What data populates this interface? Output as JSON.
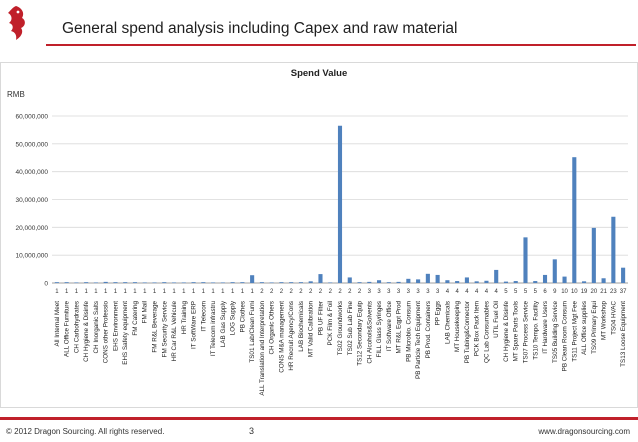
{
  "slide": {
    "title": "General spend analysis including Capex and raw material",
    "footer_left": "© 2012 Dragon Sourcing. All rights reserved.",
    "page_number": "3",
    "footer_right": "www.dragonsourcing.com"
  },
  "colors": {
    "accent": "#c0202a",
    "bar": "#4f81bd",
    "grid": "#d9d9d9"
  },
  "logo_icon": "dragon-logo-icon",
  "chart_data": {
    "type": "bar",
    "title": "Spend Value",
    "ylabel": "RMB",
    "ylim": [
      0,
      60000000
    ],
    "yticks": [
      "0",
      "10,000,000",
      "20,000,000",
      "30,000,000",
      "40,000,000",
      "50,000,000",
      "60,000,000"
    ],
    "grid": true,
    "categories": [
      "All Internal Meet",
      "ALL Office Furniture",
      "CH Carbohydrates",
      "CH Hygiene & Disinfe",
      "CH Inorganic Salts",
      "CONS other Professio",
      "EHS Environment",
      "EHS Safety equipment",
      "FM Catering",
      "FM Mail",
      "FM R&L Beverage",
      "FM Security Service",
      "HR Car R&L Vehicule",
      "HR Training",
      "IT SoftWare ERP",
      "IT Telecom",
      "IT Telecom infrastru",
      "LAB Gas Supply",
      "LOG Supply",
      "PB Clothes",
      "TS01 Lab/Clean Furni",
      "ALL Translation and Interpretation",
      "CH Organic Others",
      "CONS M&A management",
      "HR Recruit Agency/Cons",
      "LAB Biochemicals",
      "MT Valid Calibration",
      "PB UF Filter",
      "PCK Film & Foil",
      "TS02 Groundworks",
      "TS02 Sub Lab Fine",
      "TS12 Secondary Equip",
      "CH Alcohols&Solvents",
      "FILL Glass Syringes",
      "IT Software Office",
      "MT R&L Eqpt Prod",
      "PB Microbio. Consum",
      "PB Particle Tech Equipment",
      "PB Prod. Containers",
      "PP Eggs",
      "LAB Chemicals",
      "MT Housekeeping",
      "PB Tubing&Connector",
      "PCK Box Pack Item",
      "QC Lab Consumables",
      "UTIL Fuel Oil",
      "CH Hygiene & Disinfe",
      "MT Spare Parts Tools",
      "TS07 Process Service",
      "TS10 Tempo. Facility",
      "IT Hardware Users",
      "TS05 Building Service",
      "PB Clean Room Consum",
      "TS11 Project Mgt Fee",
      "ALL Office supplies",
      "TS09 Primary Equi",
      "MT Workshop",
      "TS04 HVAC",
      "TS13 Loose Equipment"
    ],
    "counts": [
      "1",
      "1",
      "1",
      "1",
      "1",
      "1",
      "1",
      "1",
      "1",
      "1",
      "1",
      "1",
      "1",
      "1",
      "1",
      "1",
      "1",
      "1",
      "1",
      "1",
      "1",
      "2",
      "2",
      "2",
      "2",
      "2",
      "2",
      "2",
      "2",
      "2",
      "2",
      "2",
      "3",
      "3",
      "3",
      "3",
      "3",
      "3",
      "3",
      "3",
      "4",
      "4",
      "4",
      "4",
      "4",
      "4",
      "5",
      "5",
      "5",
      "5",
      "6",
      "9",
      "10",
      "10",
      "19",
      "20",
      "21",
      "23",
      "37"
    ],
    "values": [
      300000,
      300000,
      200000,
      300000,
      200000,
      400000,
      300000,
      300000,
      300000,
      200000,
      200000,
      300000,
      200000,
      200000,
      300000,
      300000,
      200000,
      200000,
      300000,
      300000,
      2800000,
      300000,
      200000,
      300000,
      300000,
      300000,
      600000,
      3200000,
      200000,
      56500000,
      2000000,
      300000,
      400000,
      1000000,
      300000,
      400000,
      1500000,
      1300000,
      3300000,
      2900000,
      1000000,
      700000,
      2000000,
      600000,
      800000,
      4700000,
      500000,
      700000,
      16400000,
      700000,
      2900000,
      8500000,
      2300000,
      45200000,
      600000,
      19800000,
      1700000,
      23800000,
      5500000
    ]
  }
}
